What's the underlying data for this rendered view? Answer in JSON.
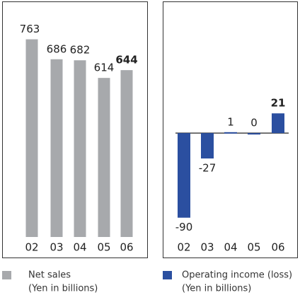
{
  "chart_data": [
    {
      "type": "bar",
      "categories": [
        "02",
        "03",
        "04",
        "05",
        "06"
      ],
      "series": [
        {
          "name": "Net sales",
          "color": "#a7a9ac",
          "values": [
            763,
            686,
            682,
            614,
            644
          ]
        }
      ],
      "ylabel": "(Yen in billions)",
      "ylim": [
        0,
        800
      ]
    },
    {
      "type": "bar",
      "categories": [
        "02",
        "03",
        "04",
        "05",
        "06"
      ],
      "series": [
        {
          "name": "Operating income (loss)",
          "color": "#2b4fa0",
          "values": [
            -90,
            -27,
            1,
            0,
            21
          ]
        }
      ],
      "ylabel": "(Yen in billions)",
      "ylim": [
        -100,
        40
      ]
    }
  ]
}
